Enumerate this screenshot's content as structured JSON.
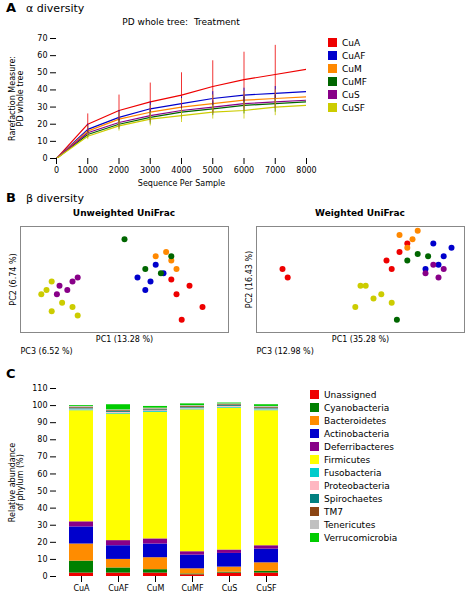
{
  "chart_data": [
    {
      "type": "line",
      "panel": "A",
      "panel_title": "α diversity",
      "title": "PD whole tree:  Treatment",
      "xlabel": "Sequence Per Sample",
      "ylabel": "Rarefaction Measure:\nPD whole tree",
      "x": [
        0,
        1000,
        2000,
        3000,
        4000,
        5000,
        6000,
        7000,
        8000
      ],
      "xlim": [
        0,
        8000
      ],
      "ylim": [
        0,
        70
      ],
      "xticks": [
        0,
        1000,
        2000,
        3000,
        4000,
        5000,
        6000,
        7000,
        8000
      ],
      "yticks": [
        0,
        10,
        20,
        30,
        40,
        50,
        60,
        70
      ],
      "legend": "right",
      "series": [
        {
          "name": "CuA",
          "color": "#EE0000",
          "values": [
            0,
            20,
            28,
            33,
            37,
            42,
            46,
            49,
            52
          ],
          "err": [
            0,
            6,
            9,
            11,
            13,
            15,
            16,
            17,
            18
          ]
        },
        {
          "name": "CuAF",
          "color": "#0000CC",
          "values": [
            0,
            17,
            24,
            29,
            32,
            35,
            37,
            38,
            39
          ],
          "err": [
            0,
            3,
            4,
            4,
            4,
            4,
            4,
            4,
            4
          ]
        },
        {
          "name": "CuM",
          "color": "#FF8800",
          "values": [
            0,
            16,
            23,
            27,
            30,
            32,
            34,
            35,
            36
          ],
          "err": [
            0,
            3,
            4,
            4,
            5,
            5,
            5,
            5,
            5
          ]
        },
        {
          "name": "CuMF",
          "color": "#006600",
          "values": [
            0,
            14,
            20,
            24,
            27,
            29,
            31,
            32,
            33
          ],
          "err": [
            0,
            2,
            3,
            4,
            4,
            4,
            5,
            5,
            5
          ]
        },
        {
          "name": "CuS",
          "color": "#880088",
          "values": [
            0,
            15,
            21,
            25,
            28,
            30,
            32,
            33,
            34
          ],
          "err": [
            0,
            2,
            3,
            4,
            4,
            4,
            4,
            4,
            4
          ]
        },
        {
          "name": "CuSF",
          "color": "#CCCC00",
          "values": [
            0,
            13,
            19,
            23,
            25,
            27,
            28,
            30,
            31
          ],
          "err": [
            0,
            2,
            3,
            4,
            4,
            4,
            5,
            5,
            5
          ]
        }
      ]
    },
    {
      "type": "scatter",
      "panel": "B",
      "panel_title": "β diversity",
      "title": "Unweighted UniFrac",
      "xlabel": "PC1 (13.28 %)",
      "ylabel": "PC2 (6.74 %)",
      "annotations": [
        "PC3 (6.52 %)"
      ],
      "tick_labels": false,
      "xlim": [
        -0.3,
        0.5
      ],
      "ylim": [
        -0.2,
        0.3
      ],
      "x": [
        0.28,
        0.3,
        0.35,
        0.4,
        0.32,
        0.22,
        0.25,
        0.2,
        0.18,
        0.15,
        0.22,
        0.28,
        0.3,
        0.26,
        0.18,
        0.24,
        0.28,
        0.1,
        -0.1,
        -0.12,
        -0.08,
        -0.15,
        -0.16,
        -0.18,
        -0.2,
        -0.14,
        -0.22,
        -0.18,
        -0.1,
        -0.08
      ],
      "values": [
        0.05,
        -0.02,
        0.02,
        -0.08,
        -0.14,
        0.12,
        0.08,
        0.04,
        0,
        0.06,
        0.16,
        0.14,
        0.1,
        0.18,
        0.1,
        0.08,
        0.16,
        0.24,
        0.04,
        0,
        0.06,
        0.02,
        -0.02,
        0.04,
        0,
        -0.06,
        -0.02,
        -0.1,
        -0.08,
        -0.12
      ],
      "colors": [
        "#EE0000",
        "#EE0000",
        "#EE0000",
        "#EE0000",
        "#EE0000",
        "#0000CC",
        "#0000CC",
        "#0000CC",
        "#0000CC",
        "#0000CC",
        "#FF8800",
        "#FF8800",
        "#FF8800",
        "#FF8800",
        "#006600",
        "#006600",
        "#006600",
        "#006600",
        "#880088",
        "#880088",
        "#880088",
        "#880088",
        "#880088",
        "#CCCC00",
        "#CCCC00",
        "#CCCC00",
        "#CCCC00",
        "#CCCC00",
        "#CCCC00",
        "#CCCC00"
      ]
    },
    {
      "type": "scatter",
      "title": "Weighted UniFrac",
      "xlabel": "PC1 (35.28 %)",
      "ylabel": "PC2 (16.43 %)",
      "annotations": [
        "PC3 (12.98 %)"
      ],
      "tick_labels": false,
      "xlim": [
        -0.3,
        0.5
      ],
      "ylim": [
        -0.2,
        0.3
      ],
      "x": [
        0.2,
        0.25,
        0.28,
        0.22,
        -0.2,
        -0.18,
        0.38,
        0.42,
        0.45,
        0.4,
        0.35,
        0.3,
        0.28,
        0.32,
        0.25,
        0.32,
        0.28,
        0.36,
        0.24,
        0.38,
        0.35,
        0.42,
        0.4,
        0.1,
        0.15,
        0.18,
        0.22,
        0.08,
        0.12
      ],
      "values": [
        0.14,
        0.18,
        0.22,
        0.1,
        0.1,
        0.06,
        0.22,
        0.16,
        0.2,
        0.12,
        0.1,
        0.24,
        0.2,
        0.28,
        0.26,
        0.17,
        0.14,
        0.16,
        -0.14,
        0.12,
        0.08,
        0.1,
        0.06,
        0.02,
        -0.04,
        -0.02,
        -0.06,
        -0.08,
        0.02
      ],
      "colors": [
        "#EE0000",
        "#EE0000",
        "#EE0000",
        "#EE0000",
        "#EE0000",
        "#EE0000",
        "#0000CC",
        "#0000CC",
        "#0000CC",
        "#0000CC",
        "#0000CC",
        "#FF8800",
        "#FF8800",
        "#FF8800",
        "#FF8800",
        "#006600",
        "#006600",
        "#006600",
        "#006600",
        "#880088",
        "#880088",
        "#880088",
        "#880088",
        "#CCCC00",
        "#CCCC00",
        "#CCCC00",
        "#CCCC00",
        "#CCCC00",
        "#CCCC00"
      ]
    },
    {
      "type": "bar",
      "panel": "C",
      "stacked": true,
      "ylabel": "Relative abundance\nof phylum (%)",
      "categories": [
        "CuA",
        "CuAF",
        "CuM",
        "CuMF",
        "CuS",
        "CuSF"
      ],
      "ylim": [
        0,
        110
      ],
      "yticks": [
        0,
        10,
        20,
        30,
        40,
        50,
        60,
        70,
        80,
        90,
        100,
        110
      ],
      "legend": "right",
      "series": [
        {
          "name": "Unassigned",
          "color": "#EE0000",
          "values": [
            2,
            2,
            2,
            1,
            2,
            2
          ]
        },
        {
          "name": "Cyanobacteria",
          "color": "#008000",
          "values": [
            7,
            3,
            2,
            0.5,
            0.5,
            1
          ]
        },
        {
          "name": "Bacteroidetes",
          "color": "#FF8C00",
          "values": [
            10,
            5,
            7,
            3,
            3,
            5
          ]
        },
        {
          "name": "Actinobacteria",
          "color": "#0000CC",
          "values": [
            10,
            8,
            8,
            8,
            8,
            8
          ]
        },
        {
          "name": "Deferribacteres",
          "color": "#880088",
          "values": [
            3,
            3,
            3,
            2,
            2,
            2
          ]
        },
        {
          "name": "Firmicutes",
          "color": "#FFFF00",
          "values": [
            65,
            74,
            74,
            83,
            83,
            79
          ]
        },
        {
          "name": "Fusobacteria",
          "color": "#00CCCC",
          "values": [
            0.5,
            0.5,
            0.5,
            0.5,
            0.5,
            0.5
          ]
        },
        {
          "name": "Proteobacteria",
          "color": "#FFB6C1",
          "values": [
            0.5,
            0.5,
            0.5,
            0.5,
            0.5,
            0.5
          ]
        },
        {
          "name": "Spirochaetes",
          "color": "#008080",
          "values": [
            0.5,
            0.5,
            0.5,
            0.5,
            0.5,
            0.5
          ]
        },
        {
          "name": "TM7",
          "color": "#8B4513",
          "values": [
            0.5,
            0.5,
            0.5,
            0.5,
            0.5,
            0.5
          ]
        },
        {
          "name": "Tenericutes",
          "color": "#C0C0C0",
          "values": [
            0.5,
            0.5,
            0.5,
            0.5,
            0.5,
            0.5
          ]
        },
        {
          "name": "Verrucomicrobia",
          "color": "#00CC00",
          "values": [
            0.5,
            3,
            1,
            1,
            0.5,
            1
          ]
        }
      ]
    }
  ]
}
